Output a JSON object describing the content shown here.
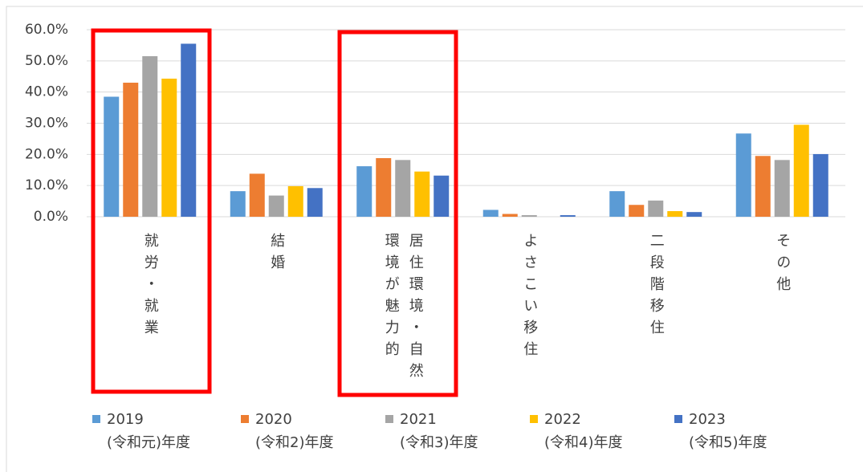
{
  "chart_data": {
    "type": "bar",
    "categories": [
      "就労・就業",
      "結婚",
      "居住環境・自然環境が魅力的",
      "よさこい移住",
      "二段階移住",
      "その他"
    ],
    "series": [
      {
        "name": "2019\n(令和元)年度",
        "color": "#5b9bd5",
        "values": [
          38.5,
          8.2,
          16.2,
          2.2,
          8.2,
          26.7
        ]
      },
      {
        "name": "2020\n(令和2)年度",
        "color": "#ed7d31",
        "values": [
          43.0,
          13.8,
          18.8,
          0.9,
          3.8,
          19.5
        ]
      },
      {
        "name": "2021\n(令和3)年度",
        "color": "#a5a5a5",
        "values": [
          51.5,
          6.8,
          18.2,
          0.5,
          5.2,
          18.2
        ]
      },
      {
        "name": "2022\n(令和4)年度",
        "color": "#ffc000",
        "values": [
          44.3,
          9.8,
          14.5,
          0,
          1.8,
          29.5
        ]
      },
      {
        "name": "2023\n(令和5)年度",
        "color": "#4472c4",
        "values": [
          55.5,
          9.2,
          13.2,
          0.5,
          1.5,
          20.1
        ]
      }
    ],
    "ylim": [
      0,
      60
    ],
    "yticks": [
      {
        "value": 0,
        "label": "0.0%"
      },
      {
        "value": 10,
        "label": "10.0%"
      },
      {
        "value": 20,
        "label": "20.0%"
      },
      {
        "value": 30,
        "label": "30.0%"
      },
      {
        "value": 40,
        "label": "40.0%"
      },
      {
        "value": 50,
        "label": "50.0%"
      },
      {
        "value": 60,
        "label": "60.0%"
      }
    ],
    "grid": true
  }
}
